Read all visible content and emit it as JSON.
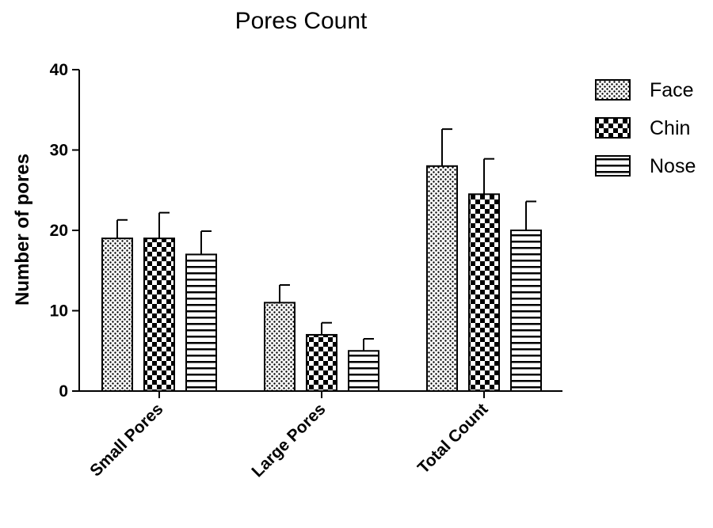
{
  "chart_data": {
    "type": "bar",
    "title": "Pores Count",
    "xlabel": "",
    "ylabel": "Number of pores",
    "ylim": [
      0,
      40
    ],
    "yticks": [
      "0",
      "10",
      "20",
      "30",
      "40"
    ],
    "categories": [
      "Small Pores",
      "Large Pores",
      "Total Count"
    ],
    "series": [
      {
        "name": "Face",
        "pattern": "dots",
        "values": [
          19,
          11,
          28
        ],
        "errors": [
          2.3,
          2.2,
          4.6
        ]
      },
      {
        "name": "Chin",
        "pattern": "checker",
        "values": [
          19,
          7,
          24.5
        ],
        "errors": [
          3.2,
          1.5,
          4.4
        ]
      },
      {
        "name": "Nose",
        "pattern": "stripes",
        "values": [
          17,
          5,
          20
        ],
        "errors": [
          2.9,
          1.5,
          3.6
        ]
      }
    ],
    "legend_position": "top-right",
    "grid": false,
    "colors": {
      "ink": "#000000",
      "background": "#ffffff"
    }
  }
}
